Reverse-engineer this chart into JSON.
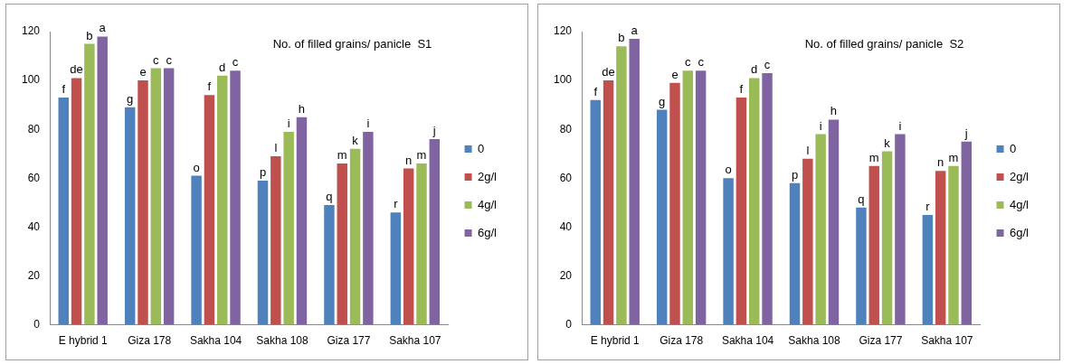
{
  "chart_data": [
    {
      "type": "bar",
      "title": "No. of filled grains/ panicle  S1",
      "categories": [
        "E hybrid 1",
        "Giza 178",
        "Sakha 104",
        "Sakha 108",
        "Giza 177",
        "Sakha 107"
      ],
      "ylim": [
        0,
        120
      ],
      "yticks": [
        0,
        20,
        40,
        60,
        80,
        100,
        120
      ],
      "grid": false,
      "legend": "right",
      "series": [
        {
          "name": "0",
          "color": "#4f81bd",
          "values": [
            93,
            89,
            61,
            59,
            49,
            46
          ],
          "value_labels": [
            "f",
            "g",
            "o",
            "p",
            "q",
            "r"
          ]
        },
        {
          "name": "2g/l",
          "color": "#c0504d",
          "values": [
            101,
            100,
            94,
            69,
            66,
            64
          ],
          "value_labels": [
            "de",
            "e",
            "f",
            "l",
            "m",
            "n"
          ]
        },
        {
          "name": "4g/l",
          "color": "#9bbb59",
          "values": [
            115,
            105,
            102,
            79,
            72,
            66
          ],
          "value_labels": [
            "b",
            "c",
            "d",
            "i",
            "k",
            "m"
          ]
        },
        {
          "name": "6g/l",
          "color": "#8064a2",
          "values": [
            118,
            105,
            104,
            85,
            79,
            76
          ],
          "value_labels": [
            "a",
            "c",
            "c",
            "h",
            "i",
            "j"
          ]
        }
      ]
    },
    {
      "type": "bar",
      "title": "No. of filled grains/ panicle  S2",
      "categories": [
        "E hybrid 1",
        "Giza 178",
        "Sakha 104",
        "Sakha 108",
        "Giza 177",
        "Sakha 107"
      ],
      "ylim": [
        0,
        120
      ],
      "yticks": [
        0,
        20,
        40,
        60,
        80,
        100,
        120
      ],
      "grid": false,
      "legend": "right",
      "series": [
        {
          "name": "0",
          "color": "#4f81bd",
          "values": [
            92,
            88,
            60,
            58,
            48,
            45
          ],
          "value_labels": [
            "f",
            "g",
            "o",
            "p",
            "q",
            "r"
          ]
        },
        {
          "name": "2g/l",
          "color": "#c0504d",
          "values": [
            100,
            99,
            93,
            68,
            65,
            63
          ],
          "value_labels": [
            "de",
            "e",
            "f",
            "l",
            "m",
            "n"
          ]
        },
        {
          "name": "4g/l",
          "color": "#9bbb59",
          "values": [
            114,
            104,
            101,
            78,
            71,
            65
          ],
          "value_labels": [
            "b",
            "c",
            "d",
            "i",
            "k",
            "m"
          ]
        },
        {
          "name": "6g/l",
          "color": "#8064a2",
          "values": [
            117,
            104,
            103,
            84,
            78,
            75
          ],
          "value_labels": [
            "a",
            "c",
            "c",
            "h",
            "i",
            "j"
          ]
        }
      ]
    }
  ]
}
